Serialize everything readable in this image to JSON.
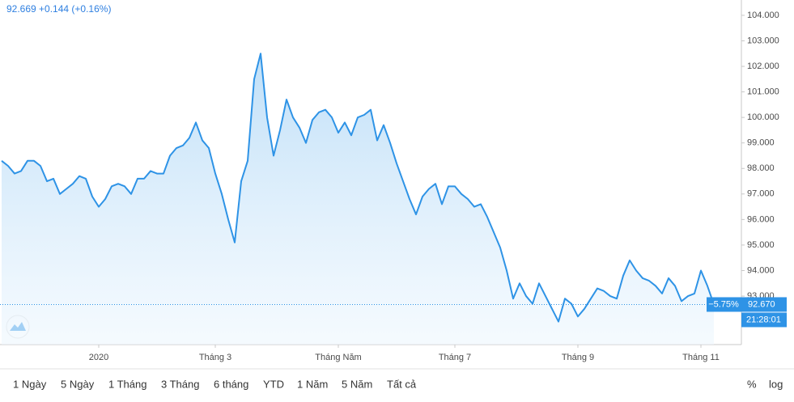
{
  "chart_data": {
    "type": "area",
    "quote": "92.669 +0.144 (+0.16%)",
    "change_label": "−5.75%",
    "last_value_label": "92.670",
    "time_label": "21:28:01",
    "color": "#2e93e6",
    "categories": [
      null,
      null,
      null,
      null,
      null,
      null,
      null,
      null,
      null,
      null,
      null,
      null,
      null,
      null,
      null,
      "2020",
      null,
      null,
      null,
      null,
      null,
      null,
      null,
      null,
      null,
      null,
      null,
      null,
      null,
      null,
      null,
      null,
      null,
      "Tháng 3",
      null,
      null,
      null,
      null,
      null,
      null,
      null,
      null,
      null,
      null,
      null,
      null,
      null,
      null,
      null,
      null,
      null,
      null,
      "Tháng Năm",
      null,
      null,
      null,
      null,
      null,
      null,
      null,
      null,
      null,
      null,
      null,
      null,
      null,
      null,
      null,
      null,
      null,
      "Tháng 7",
      null,
      null,
      null,
      null,
      null,
      null,
      null,
      null,
      null,
      null,
      null,
      null,
      null,
      null,
      null,
      null,
      null,
      null,
      "Tháng 9",
      null,
      null,
      null,
      null,
      null,
      null,
      null,
      null,
      null,
      null,
      null,
      null,
      null,
      null,
      null,
      null,
      null,
      null,
      "Tháng 11",
      null,
      null
    ],
    "values": [
      98.3,
      98.1,
      97.8,
      97.9,
      98.3,
      98.3,
      98.1,
      97.5,
      97.6,
      97.0,
      97.2,
      97.4,
      97.7,
      97.6,
      96.9,
      96.5,
      96.8,
      97.3,
      97.4,
      97.3,
      97.0,
      97.6,
      97.6,
      97.9,
      97.8,
      97.8,
      98.5,
      98.8,
      98.9,
      99.2,
      99.8,
      99.1,
      98.8,
      97.8,
      97.0,
      96.0,
      95.1,
      97.5,
      98.3,
      101.5,
      102.5,
      100.0,
      98.5,
      99.5,
      100.7,
      100.0,
      99.6,
      99.0,
      99.9,
      100.2,
      100.3,
      100.0,
      99.4,
      99.8,
      99.3,
      100.0,
      100.1,
      100.3,
      99.1,
      99.7,
      99.0,
      98.2,
      97.5,
      96.8,
      96.2,
      96.9,
      97.2,
      97.4,
      96.6,
      97.3,
      97.3,
      97.0,
      96.8,
      96.5,
      96.6,
      96.1,
      95.5,
      94.9,
      94.0,
      92.9,
      93.5,
      93.0,
      92.7,
      93.5,
      93.0,
      92.5,
      92.0,
      92.9,
      92.7,
      92.2,
      92.5,
      92.9,
      93.3,
      93.2,
      93.0,
      92.9,
      93.8,
      94.4,
      94.0,
      93.7,
      93.6,
      93.4,
      93.1,
      93.7,
      93.4,
      92.8,
      93.0,
      93.1,
      94.0,
      93.4,
      92.67
    ],
    "ylim": [
      91.1,
      104.6
    ],
    "yticks": [
      {
        "value": 93,
        "label": "93.000"
      },
      {
        "value": 94,
        "label": "94.000"
      },
      {
        "value": 95,
        "label": "95.000"
      },
      {
        "value": 96,
        "label": "96.000"
      },
      {
        "value": 97,
        "label": "97.000"
      },
      {
        "value": 98,
        "label": "98.000"
      },
      {
        "value": 99,
        "label": "99.000"
      },
      {
        "value": 100,
        "label": "100.000"
      },
      {
        "value": 101,
        "label": "101.000"
      },
      {
        "value": 102,
        "label": "102.000"
      },
      {
        "value": 103,
        "label": "103.000"
      },
      {
        "value": 104,
        "label": "104.000"
      }
    ]
  },
  "toolbar": [
    "1 Ngày",
    "5 Ngày",
    "1 Tháng",
    "3 Tháng",
    "6 tháng",
    "YTD",
    "1 Năm",
    "5 Năm",
    "Tất cả"
  ],
  "toolbar_right": [
    "%",
    "log"
  ]
}
